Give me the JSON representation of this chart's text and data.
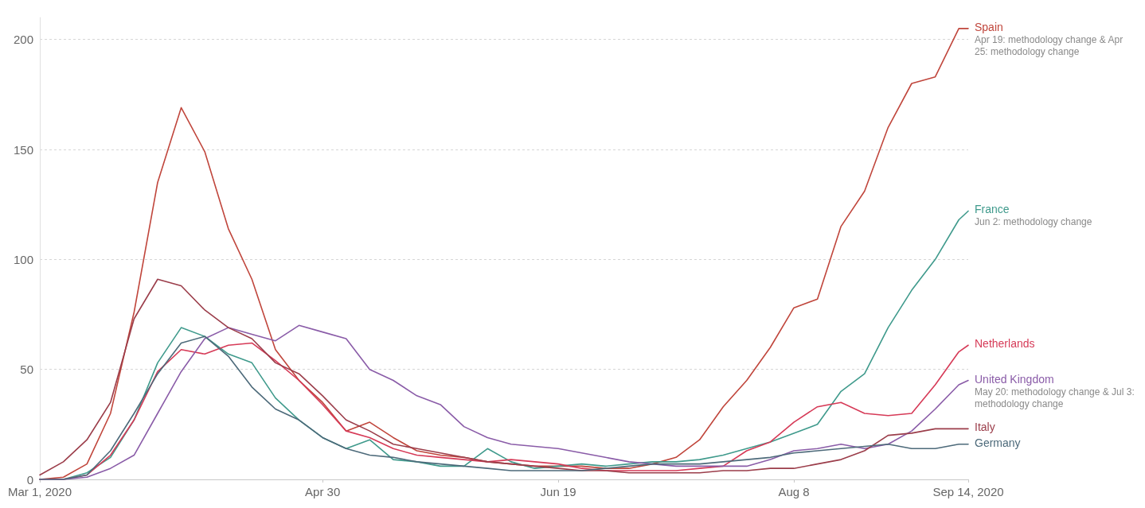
{
  "chart_data": {
    "type": "line",
    "x": [
      "2020-03-01",
      "2020-03-06",
      "2020-03-11",
      "2020-03-16",
      "2020-03-21",
      "2020-03-26",
      "2020-03-31",
      "2020-04-05",
      "2020-04-10",
      "2020-04-15",
      "2020-04-20",
      "2020-04-25",
      "2020-04-30",
      "2020-05-05",
      "2020-05-10",
      "2020-05-15",
      "2020-05-20",
      "2020-05-25",
      "2020-05-30",
      "2020-06-04",
      "2020-06-09",
      "2020-06-14",
      "2020-06-19",
      "2020-06-24",
      "2020-06-29",
      "2020-07-04",
      "2020-07-09",
      "2020-07-14",
      "2020-07-19",
      "2020-07-24",
      "2020-07-29",
      "2020-08-03",
      "2020-08-08",
      "2020-08-13",
      "2020-08-18",
      "2020-08-23",
      "2020-08-28",
      "2020-09-02",
      "2020-09-07",
      "2020-09-12",
      "2020-09-14"
    ],
    "series": [
      {
        "name": "Spain",
        "color": "#c0463c",
        "values": [
          0,
          1,
          7,
          30,
          76,
          135,
          169,
          149,
          114,
          91,
          59,
          45,
          35,
          22,
          26,
          19,
          13,
          11,
          10,
          8,
          7,
          6,
          6,
          6,
          5,
          5,
          7,
          10,
          18,
          33,
          45,
          60,
          78,
          82,
          115,
          131,
          160,
          180,
          183,
          205,
          205
        ]
      },
      {
        "name": "France",
        "color": "#3f9a8c",
        "values": [
          0,
          0,
          3,
          10,
          27,
          53,
          69,
          65,
          57,
          53,
          37,
          27,
          19,
          14,
          18,
          9,
          8,
          6,
          6,
          14,
          8,
          5,
          6,
          7,
          6,
          7,
          8,
          8,
          9,
          11,
          14,
          17,
          21,
          25,
          40,
          48,
          69,
          86,
          100,
          118,
          122
        ]
      },
      {
        "name": "Netherlands",
        "color": "#d63a57",
        "values": [
          0,
          0,
          2,
          11,
          27,
          49,
          59,
          57,
          61,
          62,
          54,
          45,
          34,
          22,
          19,
          14,
          11,
          10,
          9,
          8,
          9,
          8,
          7,
          5,
          4,
          4,
          4,
          4,
          5,
          6,
          13,
          17,
          26,
          33,
          35,
          30,
          29,
          30,
          43,
          58,
          61
        ]
      },
      {
        "name": "United Kingdom",
        "color": "#8a5ca8",
        "values": [
          0,
          0,
          1,
          5,
          11,
          30,
          49,
          64,
          69,
          66,
          63,
          70,
          67,
          64,
          50,
          45,
          38,
          34,
          24,
          19,
          16,
          15,
          14,
          12,
          10,
          8,
          7,
          6,
          6,
          6,
          6,
          9,
          13,
          14,
          16,
          14,
          16,
          22,
          32,
          43,
          45
        ]
      },
      {
        "name": "Italy",
        "color": "#9b3d4a",
        "values": [
          2,
          8,
          18,
          35,
          73,
          91,
          88,
          77,
          69,
          64,
          53,
          48,
          38,
          27,
          22,
          16,
          14,
          12,
          10,
          8,
          7,
          6,
          5,
          4,
          4,
          3,
          3,
          3,
          3,
          4,
          4,
          5,
          5,
          7,
          9,
          13,
          20,
          21,
          23,
          23,
          23
        ]
      },
      {
        "name": "Germany",
        "color": "#4d6a7a",
        "values": [
          0,
          0,
          2,
          13,
          30,
          48,
          62,
          65,
          56,
          42,
          32,
          27,
          19,
          14,
          11,
          10,
          8,
          7,
          6,
          5,
          4,
          4,
          4,
          4,
          5,
          6,
          7,
          7,
          7,
          8,
          9,
          10,
          12,
          13,
          14,
          15,
          16,
          14,
          14,
          16,
          16
        ]
      }
    ],
    "annotations": [
      {
        "text": "Apr 19: methodology change & Apr 25: methodology change",
        "x": "2020-09-14",
        "y": 205
      },
      {
        "text": "Jun 2: methodology change",
        "x": "2020-09-14",
        "y": 122
      },
      {
        "text": "May 20: methodology change & Jul 3: methodology change",
        "x": "2020-09-14",
        "y": 45
      }
    ],
    "xlim": [
      "2020-03-01",
      "2020-09-14"
    ],
    "xticks": [
      {
        "value": "2020-03-01",
        "label": "Mar 1, 2020"
      },
      {
        "value": "2020-04-30",
        "label": "Apr 30"
      },
      {
        "value": "2020-06-19",
        "label": "Jun 19"
      },
      {
        "value": "2020-08-08",
        "label": "Aug 8"
      },
      {
        "value": "2020-09-14",
        "label": "Sep 14, 2020"
      }
    ],
    "ylim": [
      0,
      210
    ],
    "yticks": [
      0,
      50,
      100,
      150,
      200
    ],
    "grid": "y",
    "legend": false,
    "marker": "none",
    "line_style": "solid"
  }
}
